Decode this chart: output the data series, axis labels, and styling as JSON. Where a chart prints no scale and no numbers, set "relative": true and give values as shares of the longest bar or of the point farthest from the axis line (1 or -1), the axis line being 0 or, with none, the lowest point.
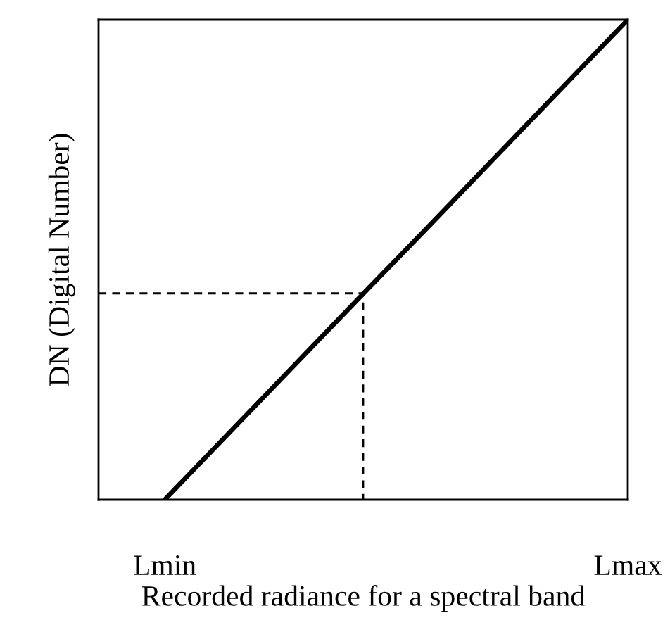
{
  "chart_data": {
    "type": "line",
    "relative": true,
    "xlabel": "Recorded radiance for a spectral band",
    "ylabel": "DN (Digital Number)",
    "categories": [
      null,
      "Lmin",
      null,
      null,
      null,
      null,
      null,
      null,
      "Lmax"
    ],
    "tick_labels": "x",
    "grid": false,
    "legend": false,
    "marker": "none",
    "series": [
      {
        "color": "#000000",
        "values": [
          null,
          0,
          0.143,
          0.286,
          0.429,
          0.571,
          0.714,
          0.857,
          1
        ],
        "line_style": "solid"
      },
      {
        "type": "step",
        "color": "#000000",
        "values": [
          0.43,
          0.43,
          0.43,
          0.43,
          0,
          null,
          null,
          null,
          null
        ],
        "line_style": "dashed"
      }
    ]
  }
}
